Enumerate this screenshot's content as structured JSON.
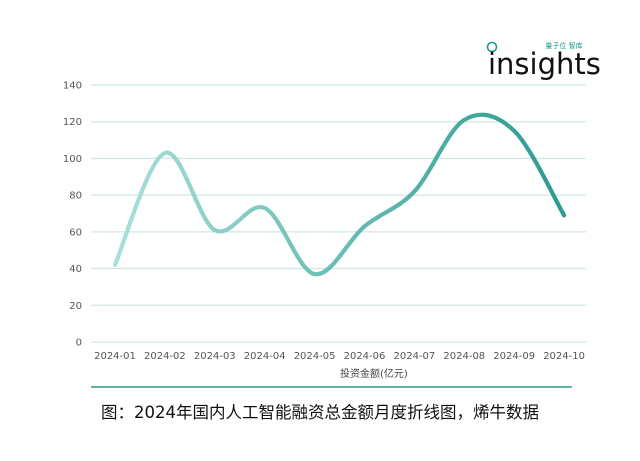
{
  "logo": {
    "small_text": "量子位 智库",
    "main_text": "insights"
  },
  "chart_data": {
    "type": "line",
    "categories": [
      "2024-01",
      "2024-02",
      "2024-03",
      "2024-04",
      "2024-05",
      "2024-06",
      "2024-07",
      "2024-08",
      "2024-09",
      "2024-10"
    ],
    "series": [
      {
        "name": "投资金额(亿元)",
        "values": [
          42,
          103,
          61,
          73,
          37,
          63,
          82,
          121,
          115,
          69
        ]
      }
    ],
    "ylim": [
      0,
      140
    ],
    "yticks": [
      0,
      20,
      40,
      60,
      80,
      100,
      120,
      140
    ],
    "grid": true,
    "legend_position": "bottom",
    "colors": {
      "line_start": "#a9e0d8",
      "line_end": "#2a9a8f",
      "grid": "#cfe9e5",
      "axis": "#2a9a8f"
    }
  },
  "caption": "图：2024年国内人工智能融资总金额月度折线图，烯牛数据"
}
